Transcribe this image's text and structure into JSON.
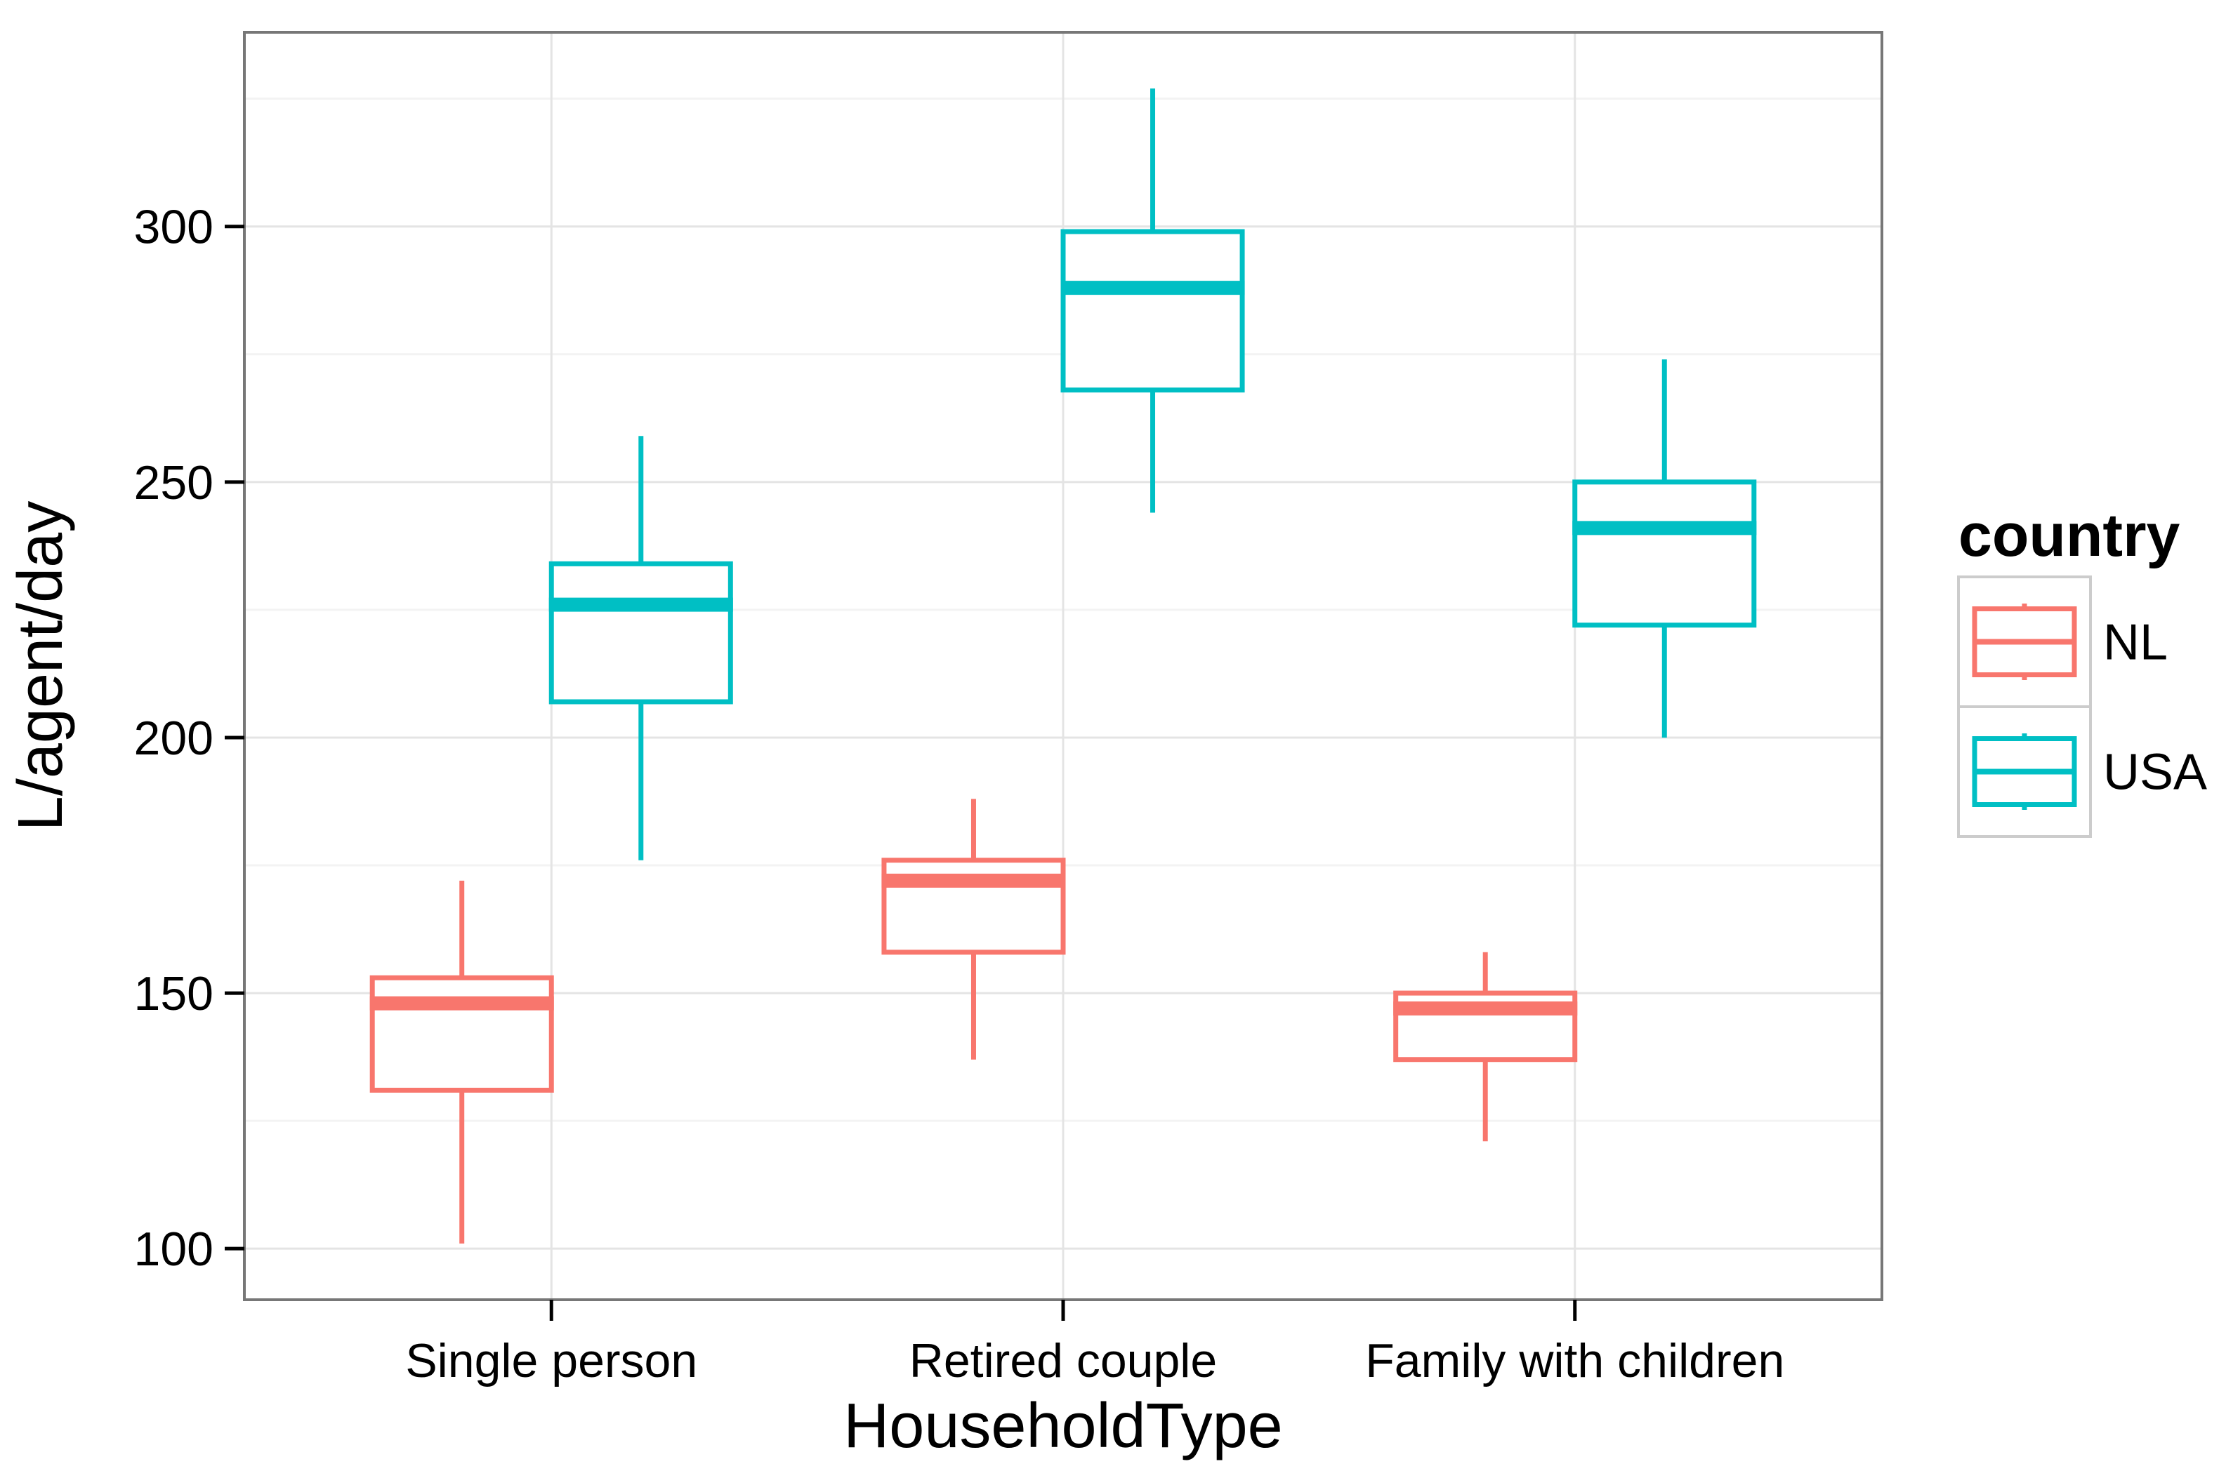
{
  "figure": {
    "title": "",
    "y_axis": {
      "title": "L/agent/day"
    },
    "x_axis": {
      "title": "HouseholdType"
    },
    "legend": {
      "title": "country",
      "entries": [
        {
          "label": "NL",
          "color": "#F8766D"
        },
        {
          "label": "USA",
          "color": "#00BFC4"
        }
      ]
    },
    "style": {
      "panel_background": "#FFFFFF",
      "panel_border": "#777777",
      "grid_major": "#E4E4E4",
      "grid_minor": "#F3F3F3",
      "tick_color": "#000000",
      "legend_key_border": "#CCCCCC",
      "legend_key_background": "#FFFFFF"
    }
  },
  "chart_data": {
    "type": "boxplot",
    "title": "",
    "xlabel": "HouseholdType",
    "ylabel": "L/agent/day",
    "categories": [
      "Single person",
      "Retired couple",
      "Family with children"
    ],
    "series": [
      {
        "name": "NL",
        "color": "#F8766D",
        "boxes": [
          {
            "category": "Single person",
            "min": 101,
            "q1": 131,
            "median": 148,
            "q3": 153,
            "max": 172
          },
          {
            "category": "Retired couple",
            "min": 137,
            "q1": 158,
            "median": 172,
            "q3": 176,
            "max": 188
          },
          {
            "category": "Family with children",
            "min": 121,
            "q1": 137,
            "median": 147,
            "q3": 150,
            "max": 158
          }
        ]
      },
      {
        "name": "USA",
        "color": "#00BFC4",
        "boxes": [
          {
            "category": "Single person",
            "min": 176,
            "q1": 207,
            "median": 226,
            "q3": 234,
            "max": 259
          },
          {
            "category": "Retired couple",
            "min": 244,
            "q1": 268,
            "median": 288,
            "q3": 299,
            "max": 327
          },
          {
            "category": "Family with children",
            "min": 200,
            "q1": 222,
            "median": 241,
            "q3": 250,
            "max": 274
          }
        ]
      }
    ],
    "ylim": [
      90,
      338
    ],
    "yticks": [
      100,
      150,
      200,
      250,
      300
    ],
    "yticks_minor": [
      125,
      175,
      225,
      275,
      325
    ],
    "grid": true,
    "legend_position": "right",
    "legend_title": "country"
  }
}
